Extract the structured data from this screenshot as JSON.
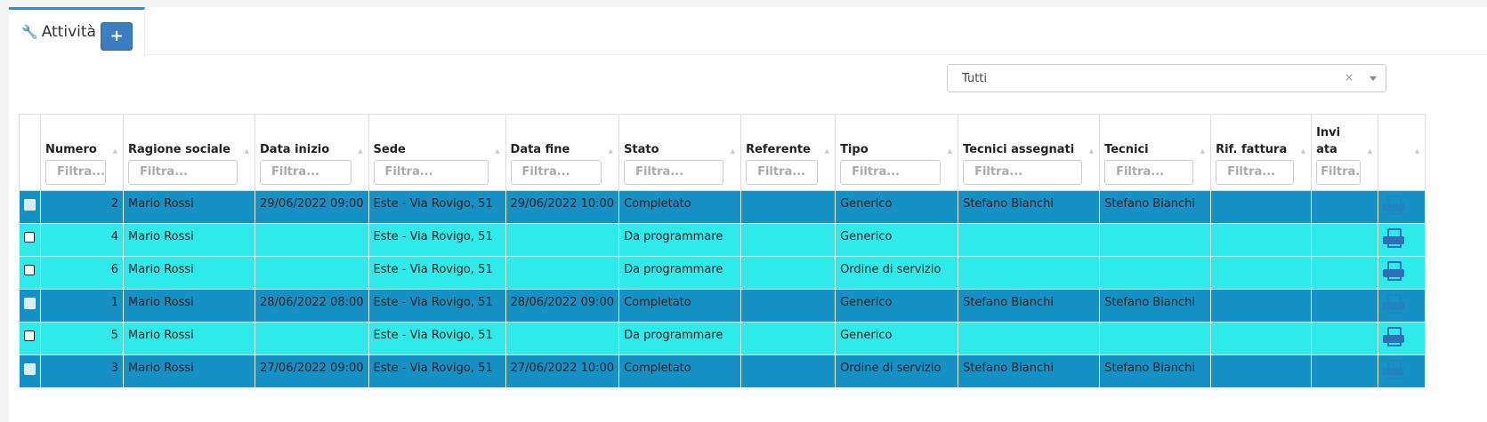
{
  "tab": {
    "icon": "wrench-icon",
    "title": "Attività",
    "add_label": "+"
  },
  "filter_select": {
    "value": "Tutti",
    "clear": "×"
  },
  "columns": [
    {
      "label": "Numero",
      "placeholder": "Filtra..."
    },
    {
      "label": "Ragione sociale",
      "placeholder": "Filtra..."
    },
    {
      "label": "Data inizio",
      "placeholder": "Filtra..."
    },
    {
      "label": "Sede",
      "placeholder": "Filtra..."
    },
    {
      "label": "Data fine",
      "placeholder": "Filtra..."
    },
    {
      "label": "Stato",
      "placeholder": "Filtra..."
    },
    {
      "label": "Referente",
      "placeholder": "Filtra..."
    },
    {
      "label": "Tipo",
      "placeholder": "Filtra..."
    },
    {
      "label": "Tecnici assegnati",
      "placeholder": "Filtra..."
    },
    {
      "label": "Tecnici",
      "placeholder": "Filtra..."
    },
    {
      "label": "Rif. fattura",
      "placeholder": "Filtra..."
    },
    {
      "label": "Invi ata",
      "placeholder": "Filtra..."
    }
  ],
  "colors": {
    "completed_row": "#1591c5",
    "pending_row": "#2eeaea",
    "accent": "#3c7dbf"
  },
  "rows": [
    {
      "checked": true,
      "cells": [
        "2",
        "Mario Rossi",
        "29/06/2022 09:00",
        "Este - Via Rovigo, 51",
        "29/06/2022 10:00",
        "Completato",
        "",
        "Generico",
        "Stefano Bianchi",
        "Stefano Bianchi",
        "",
        ""
      ]
    },
    {
      "checked": false,
      "cells": [
        "4",
        "Mario Rossi",
        "",
        "Este - Via Rovigo, 51",
        "",
        "Da programmare",
        "",
        "Generico",
        "",
        "",
        "",
        ""
      ]
    },
    {
      "checked": false,
      "cells": [
        "6",
        "Mario Rossi",
        "",
        "Este - Via Rovigo, 51",
        "",
        "Da programmare",
        "",
        "Ordine di servizio",
        "",
        "",
        "",
        ""
      ]
    },
    {
      "checked": true,
      "cells": [
        "1",
        "Mario Rossi",
        "28/06/2022 08:00",
        "Este - Via Rovigo, 51",
        "28/06/2022 09:00",
        "Completato",
        "",
        "Generico",
        "Stefano Bianchi",
        "Stefano Bianchi",
        "",
        ""
      ]
    },
    {
      "checked": false,
      "cells": [
        "5",
        "Mario Rossi",
        "",
        "Este - Via Rovigo, 51",
        "",
        "Da programmare",
        "",
        "Generico",
        "",
        "",
        "",
        ""
      ]
    },
    {
      "checked": true,
      "cells": [
        "3",
        "Mario Rossi",
        "27/06/2022 09:00",
        "Este - Via Rovigo, 51",
        "27/06/2022 10:00",
        "Completato",
        "",
        "Ordine di servizio",
        "Stefano Bianchi",
        "Stefano Bianchi",
        "",
        ""
      ]
    }
  ]
}
